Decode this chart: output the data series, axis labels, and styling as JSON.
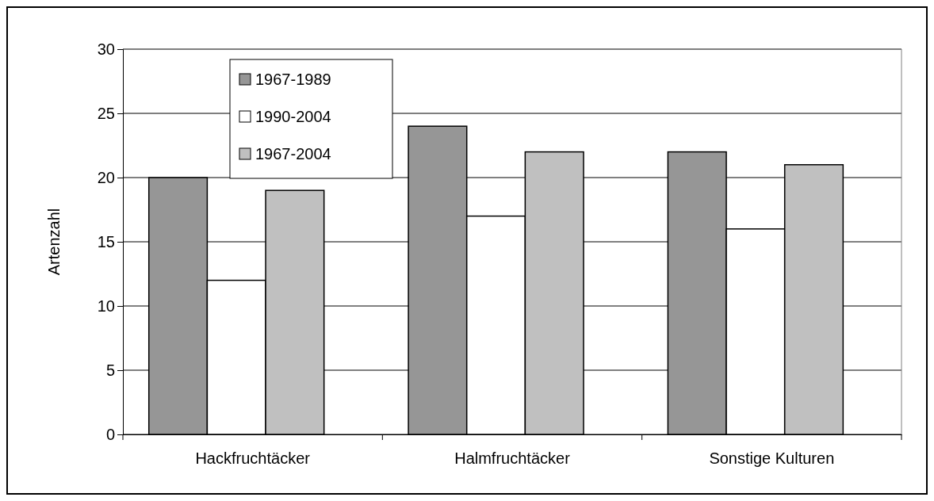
{
  "chart_data": {
    "type": "bar",
    "ylabel": "Artenzahl",
    "categories": [
      "Hackfruchtäcker",
      "Halmfruchtäcker",
      "Sonstige Kulturen"
    ],
    "series": [
      {
        "name": "1967-1989",
        "color": "#969696",
        "values": [
          20,
          24,
          22
        ]
      },
      {
        "name": "1990-2004",
        "color": "#ffffff",
        "values": [
          12,
          17,
          16
        ]
      },
      {
        "name": "1967-2004",
        "color": "#c0c0c0",
        "values": [
          19,
          22,
          21
        ]
      }
    ],
    "ylim": [
      0,
      30
    ],
    "yticks": [
      0,
      5,
      10,
      15,
      20,
      25,
      30
    ],
    "grid": "y",
    "legend": "top left"
  }
}
